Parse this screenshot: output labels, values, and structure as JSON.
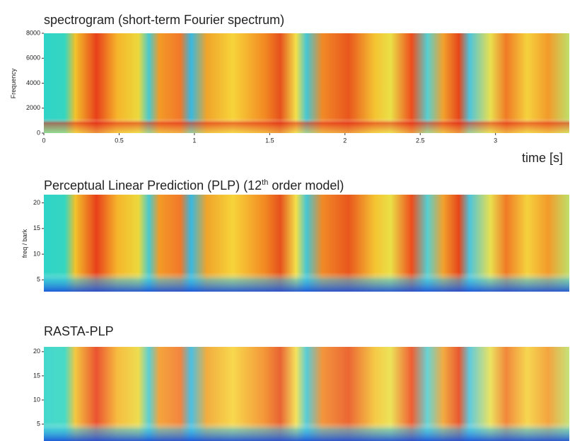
{
  "panels": [
    {
      "title": "spectrogram (short-term Fourier spectrum)",
      "y_label": "Frequency",
      "yticks": [
        0,
        2000,
        4000,
        6000,
        8000
      ],
      "ylim": [
        0,
        8000
      ],
      "xticks": [
        0,
        0.5,
        1,
        1.5,
        2,
        2.5,
        3
      ],
      "xlim": [
        0,
        3.49
      ],
      "x_label": "time [s]"
    },
    {
      "title": [
        "Perceptual Linear Prediction (PLP) (12",
        "th",
        " order model)"
      ],
      "y_label": "freq / bark",
      "yticks": [
        5,
        10,
        15,
        20
      ],
      "ylim": [
        2.7,
        21.6
      ]
    },
    {
      "title": "RASTA-PLP",
      "yticks": [
        5,
        10,
        15,
        20
      ],
      "ylim": [
        1.5,
        21
      ]
    }
  ]
}
